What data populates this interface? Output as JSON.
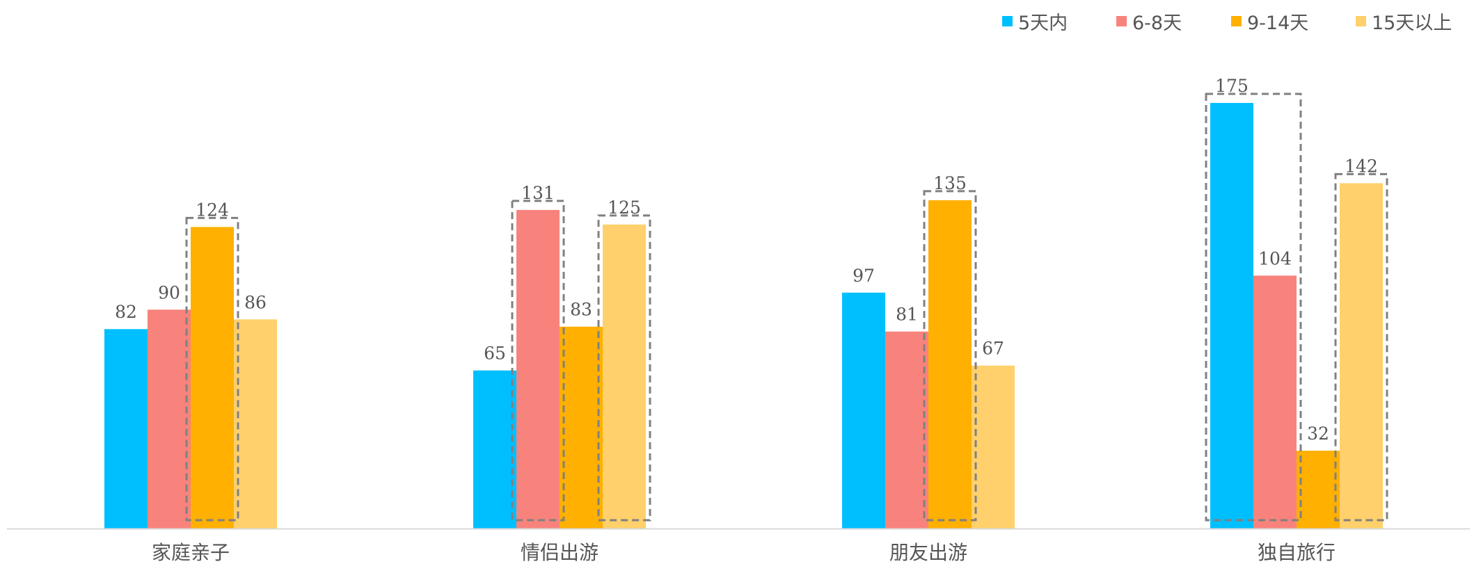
{
  "chart_data": {
    "type": "bar",
    "categories": [
      "家庭亲子",
      "情侣出游",
      "朋友出游",
      "独自旅行"
    ],
    "series": [
      {
        "name": "5天内",
        "color": "#00BFFF",
        "values": [
          82,
          65,
          97,
          175
        ]
      },
      {
        "name": "6-8天",
        "color": "#F8837C",
        "values": [
          90,
          131,
          81,
          104
        ]
      },
      {
        "name": "9-14天",
        "color": "#FFB000",
        "values": [
          124,
          83,
          135,
          32
        ]
      },
      {
        "name": "15天以上",
        "color": "#FFD06B",
        "values": [
          86,
          125,
          67,
          142
        ]
      }
    ],
    "legend_position": "top-right",
    "grid": false,
    "data_labels": true,
    "ylim": [
      0,
      175
    ],
    "highlight_boxes": [
      {
        "category": "家庭亲子",
        "series_from": "9-14天",
        "series_to": "9-14天"
      },
      {
        "category": "情侣出游",
        "series_from": "6-8天",
        "series_to": "6-8天"
      },
      {
        "category": "情侣出游",
        "series_from": "15天以上",
        "series_to": "15天以上"
      },
      {
        "category": "朋友出游",
        "series_from": "9-14天",
        "series_to": "9-14天"
      },
      {
        "category": "独自旅行",
        "series_from": "5天内",
        "series_to": "6-8天"
      },
      {
        "category": "独自旅行",
        "series_from": "15天以上",
        "series_to": "15天以上"
      }
    ],
    "highlight_style": {
      "stroke": "#808080",
      "dash": "10,6"
    }
  }
}
